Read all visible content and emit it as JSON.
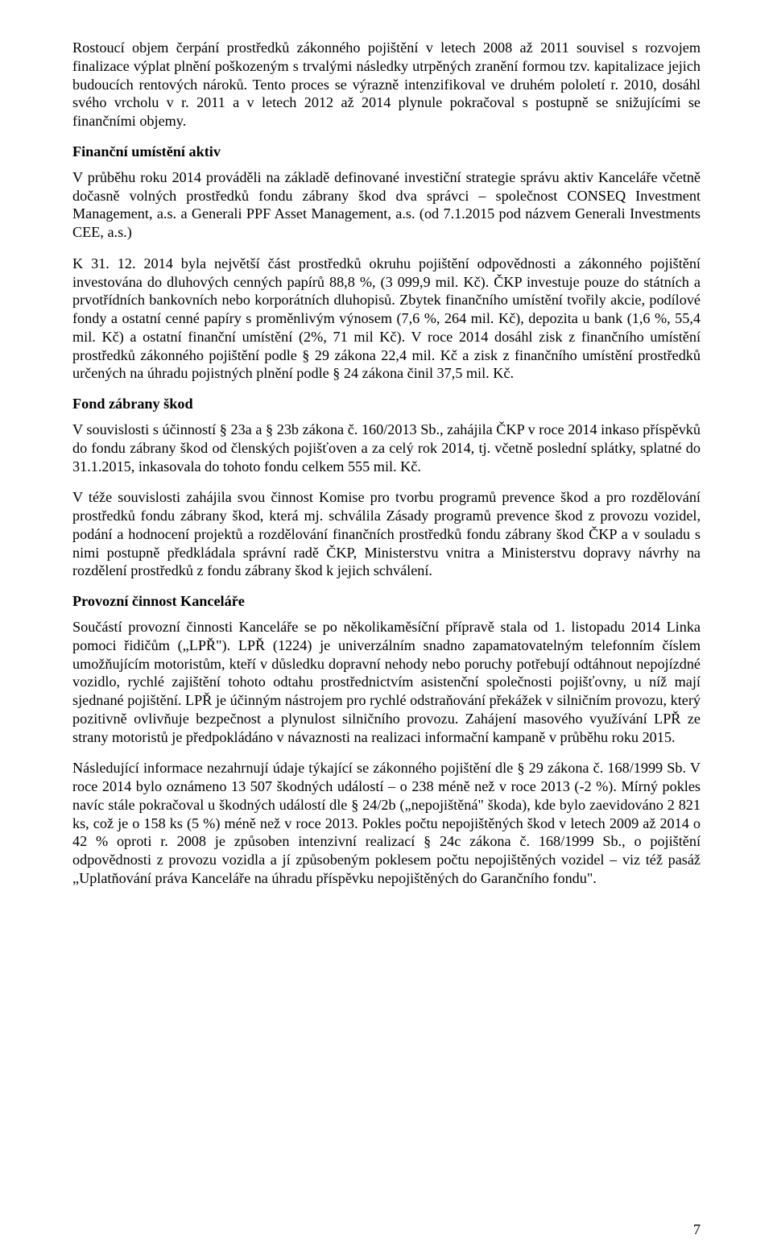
{
  "paragraphs": {
    "p1": "Rostoucí objem čerpání prostředků zákonného pojištění v letech 2008 až 2011 souvisel s rozvojem finalizace výplat plnění poškozeným s trvalými následky utrpěných zranění formou tzv. kapitalizace jejich budoucích rentových nároků. Tento proces se výrazně intenzifikoval ve druhém pololetí r. 2010, dosáhl svého vrcholu v r. 2011 a v letech 2012 až 2014 plynule pokračoval s postupně se snižujícími se finančními objemy.",
    "h1": "Finanční umístění aktiv",
    "p2": "V průběhu roku 2014 prováděli na základě definované investiční strategie správu aktiv Kanceláře včetně dočasně volných prostředků fondu zábrany škod dva správci – společnost CONSEQ Investment Management, a.s. a Generali PPF Asset Management, a.s. (od 7.1.2015 pod názvem Generali Investments CEE, a.s.)",
    "p3": "K 31. 12. 2014 byla největší část prostředků okruhu pojištění odpovědnosti a zákonného pojištění investována do dluhových cenných papírů 88,8 %, (3 099,9 mil. Kč). ČKP investuje pouze do státních a prvotřídních bankovních nebo korporátních dluhopisů. Zbytek finančního umístění tvořily akcie, podílové fondy a ostatní cenné papíry s proměnlivým výnosem (7,6 %, 264 mil. Kč), depozita u bank (1,6 %, 55,4 mil. Kč) a ostatní finanční umístění (2%, 71 mil Kč). V roce 2014 dosáhl zisk z finančního umístění prostředků zákonného pojištění podle § 29 zákona 22,4 mil. Kč a zisk z finančního umístění prostředků určených na úhradu pojistných plnění podle § 24 zákona činil 37,5 mil. Kč.",
    "h2": "Fond zábrany škod",
    "p4": "V souvislosti s účinností § 23a a § 23b zákona č. 160/2013 Sb., zahájila ČKP v roce 2014 inkaso příspěvků do fondu zábrany škod od členských pojišťoven a za celý rok 2014, tj. včetně poslední splátky, splatné do 31.1.2015, inkasovala do tohoto fondu celkem 555 mil. Kč.",
    "p5": "V téže souvislosti zahájila svou činnost Komise pro tvorbu programů prevence škod a pro rozdělování prostředků fondu zábrany škod, která mj. schválila Zásady programů prevence škod z provozu vozidel, podání a hodnocení projektů a rozdělování finančních prostředků fondu zábrany škod ČKP a v souladu s nimi postupně předkládala správní radě ČKP, Ministerstvu vnitra a Ministerstvu dopravy návrhy na rozdělení prostředků z fondu zábrany škod k jejich schválení.",
    "h3": "Provozní činnost Kanceláře",
    "p6": "Součástí provozní činnosti Kanceláře se po několikaměsíční přípravě stala od 1. listopadu 2014 Linka pomoci řidičům („LPŘ\"). LPŘ (1224) je univerzálním snadno zapamatovatelným telefonním číslem umožňujícím motoristům, kteří v důsledku dopravní nehody nebo poruchy potřebují odtáhnout nepojízdné vozidlo, rychlé zajištění tohoto odtahu prostřednictvím asistenční společnosti pojišťovny, u níž mají sjednané pojištění. LPŘ je účinným nástrojem pro rychlé odstraňování překážek v silničním provozu, který pozitivně ovlivňuje bezpečnost a plynulost silničního provozu. Zahájení masového využívání LPŘ ze strany motoristů je předpokládáno v návaznosti na realizaci informační kampaně v průběhu roku 2015.",
    "p7": "Následující informace nezahrnují údaje týkající se zákonného pojištění dle § 29 zákona č. 168/1999 Sb. V roce 2014 bylo oznámeno 13 507 škodných událostí – o 238 méně než v roce 2013 (-2 %). Mírný pokles navíc stále pokračoval u škodných událostí dle § 24/2b („nepojištěná\" škoda), kde bylo zaevidováno 2 821 ks, což je o 158 ks (5 %) méně než v roce 2013. Pokles počtu nepojištěných škod v letech 2009 až 2014 o 42 % oproti r. 2008 je způsoben intenzivní realizací § 24c zákona č. 168/1999 Sb., o pojištění odpovědnosti z provozu vozidla a jí způsobeným poklesem počtu nepojištěných vozidel – viz též pasáž „Uplatňování práva Kanceláře na úhradu příspěvku nepojištěných do Garančního fondu\"."
  },
  "pageNumber": "7"
}
